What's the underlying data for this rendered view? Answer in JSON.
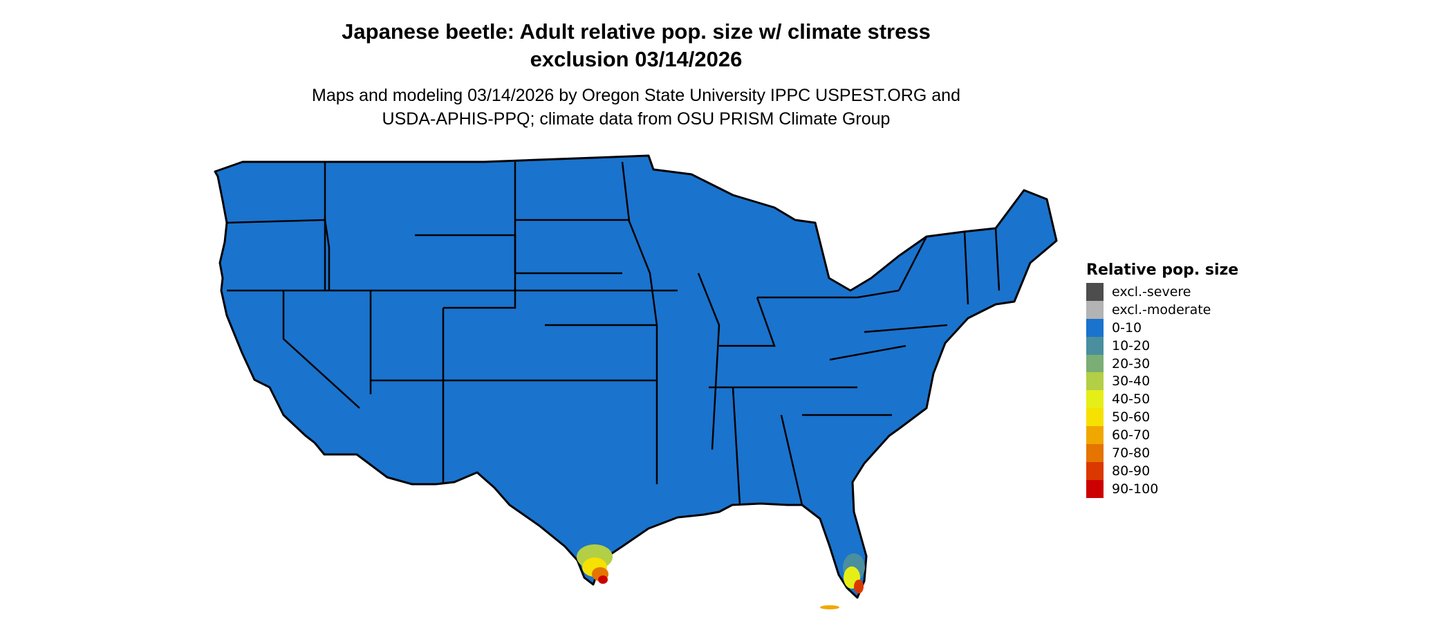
{
  "title_line1": "Japanese beetle: Adult relative pop. size w/ climate stress",
  "title_line2": "exclusion 03/14/2026",
  "subtitle_line1": "Maps and modeling 03/14/2026 by Oregon State University IPPC USPEST.ORG and",
  "subtitle_line2": "USDA-APHIS-PPQ; climate data from OSU PRISM Climate Group",
  "map": {
    "region": "Contiguous United States",
    "dominant_class": "0-10",
    "hotspots": [
      "South Texas",
      "South Florida"
    ]
  },
  "legend": {
    "title": "Relative pop. size",
    "items": [
      {
        "label": "excl.-severe",
        "color": "#4d4d4d"
      },
      {
        "label": "excl.-moderate",
        "color": "#b3b3b3"
      },
      {
        "label": "0-10",
        "color": "#1a73cd"
      },
      {
        "label": "10-20",
        "color": "#4a8f9e"
      },
      {
        "label": "20-30",
        "color": "#7aae74"
      },
      {
        "label": "30-40",
        "color": "#b3cf45"
      },
      {
        "label": "40-50",
        "color": "#e5ef17"
      },
      {
        "label": "50-60",
        "color": "#f7e100"
      },
      {
        "label": "60-70",
        "color": "#f0a800"
      },
      {
        "label": "70-80",
        "color": "#e57400"
      },
      {
        "label": "80-90",
        "color": "#db3800"
      },
      {
        "label": "90-100",
        "color": "#cc0000"
      }
    ]
  }
}
